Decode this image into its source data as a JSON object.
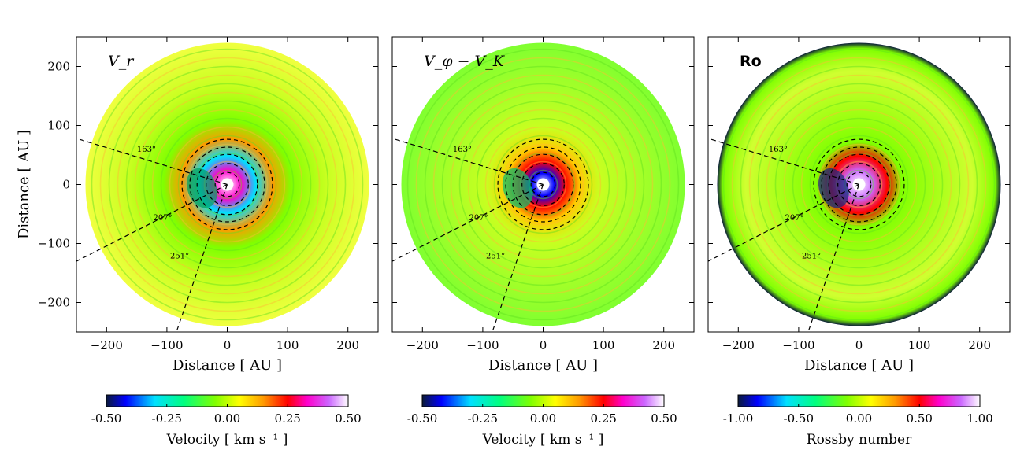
{
  "chart_data": [
    {
      "type": "heatmap",
      "title": "V_r",
      "xlabel": "Distance [ AU ]",
      "ylabel": "Distance [ AU ]",
      "xlim": [
        -250,
        250
      ],
      "ylim": [
        -250,
        250
      ],
      "xticks": [
        -200,
        -100,
        0,
        100,
        200
      ],
      "yticks": [
        200,
        100,
        0,
        -100,
        -200
      ],
      "disk_outer_radius_au": 235,
      "dashed_circle_radii_au": [
        20,
        35,
        50,
        62,
        75
      ],
      "angle_lines": [
        {
          "label": "163°",
          "deg": 163
        },
        {
          "label": "207°",
          "deg": 207
        },
        {
          "label": "251°",
          "deg": 251
        }
      ],
      "colorbar": {
        "label": "Velocity [ km s⁻¹ ]",
        "vmin": -0.5,
        "vmax": 0.5,
        "tick_labels": [
          "-0.50",
          "-0.25",
          "0.00",
          "0.25",
          "0.50"
        ]
      }
    },
    {
      "type": "heatmap",
      "title": "V_φ − V_K",
      "xlabel": "Distance [ AU ]",
      "xlim": [
        -250,
        250
      ],
      "ylim": [
        -250,
        250
      ],
      "xticks": [
        -200,
        -100,
        0,
        100,
        200
      ],
      "disk_outer_radius_au": 235,
      "dashed_circle_radii_au": [
        20,
        35,
        50,
        62,
        75
      ],
      "angle_lines": [
        {
          "label": "163°",
          "deg": 163
        },
        {
          "label": "207°",
          "deg": 207
        },
        {
          "label": "251°",
          "deg": 251
        }
      ],
      "colorbar": {
        "label": "Velocity [ km s⁻¹ ]",
        "vmin": -0.5,
        "vmax": 0.5,
        "tick_labels": [
          "-0.50",
          "-0.25",
          "0.00",
          "0.25",
          "0.50"
        ]
      }
    },
    {
      "type": "heatmap",
      "title": "Ro",
      "xlabel": "Distance [ AU ]",
      "xlim": [
        -250,
        250
      ],
      "ylim": [
        -250,
        250
      ],
      "xticks": [
        -200,
        -100,
        0,
        100,
        200
      ],
      "disk_outer_radius_au": 235,
      "dashed_circle_radii_au": [
        20,
        35,
        50,
        62,
        75
      ],
      "angle_lines": [
        {
          "label": "163°",
          "deg": 163
        },
        {
          "label": "207°",
          "deg": 207
        },
        {
          "label": "251°",
          "deg": 251
        }
      ],
      "colorbar": {
        "label": "Rossby number",
        "vmin": -1.0,
        "vmax": 1.0,
        "tick_labels": [
          "-1.00",
          "-0.50",
          "0.00",
          "0.50",
          "1.00"
        ]
      }
    }
  ],
  "ytick_labels": [
    "200",
    "100",
    "0",
    "−100",
    "−200"
  ],
  "xtick_labels": [
    "−200",
    "−100",
    "0",
    "100",
    "200"
  ],
  "ylabel": "Distance [ AU ]",
  "xlabel": "Distance [ AU ]",
  "colormap_stops": [
    "#0a1a3a",
    "#0000ff",
    "#00e0ff",
    "#00ff80",
    "#80ff00",
    "#ffff00",
    "#ff9900",
    "#ff0000",
    "#ff00cc",
    "#cc66ff",
    "#ffffff"
  ]
}
